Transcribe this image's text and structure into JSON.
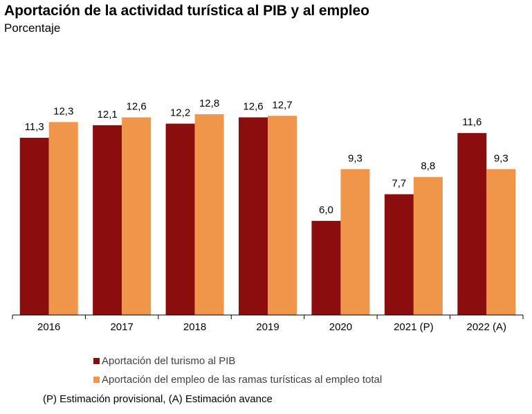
{
  "chart_data": {
    "type": "bar",
    "title": "Aportación de la actividad turística al PIB y al empleo",
    "subtitle": "Porcentaje",
    "categories": [
      "2016",
      "2017",
      "2018",
      "2019",
      "2020",
      "2021 (P)",
      "2022 (A)"
    ],
    "series": [
      {
        "name": "Aportación del turismo al PIB",
        "color": "#8B0D0D",
        "values": [
          11.3,
          12.1,
          12.2,
          12.6,
          6.0,
          7.7,
          11.6
        ],
        "labels": [
          "11,3",
          "12,1",
          "12,2",
          "12,6",
          "6,0",
          "7,7",
          "11,6"
        ]
      },
      {
        "name": "Aportación del empleo de las ramas turísticas al empleo total",
        "color": "#F0964B",
        "values": [
          12.3,
          12.6,
          12.8,
          12.7,
          9.3,
          8.8,
          9.3
        ],
        "labels": [
          "12,3",
          "12,6",
          "12,8",
          "12,7",
          "9,3",
          "8,8",
          "9,3"
        ]
      }
    ],
    "ylim": [
      0,
      14
    ],
    "grid": false,
    "legend_position": "bottom",
    "xlabel": "",
    "ylabel": ""
  },
  "footnote": "(P) Estimación provisional, (A) Estimación avance"
}
